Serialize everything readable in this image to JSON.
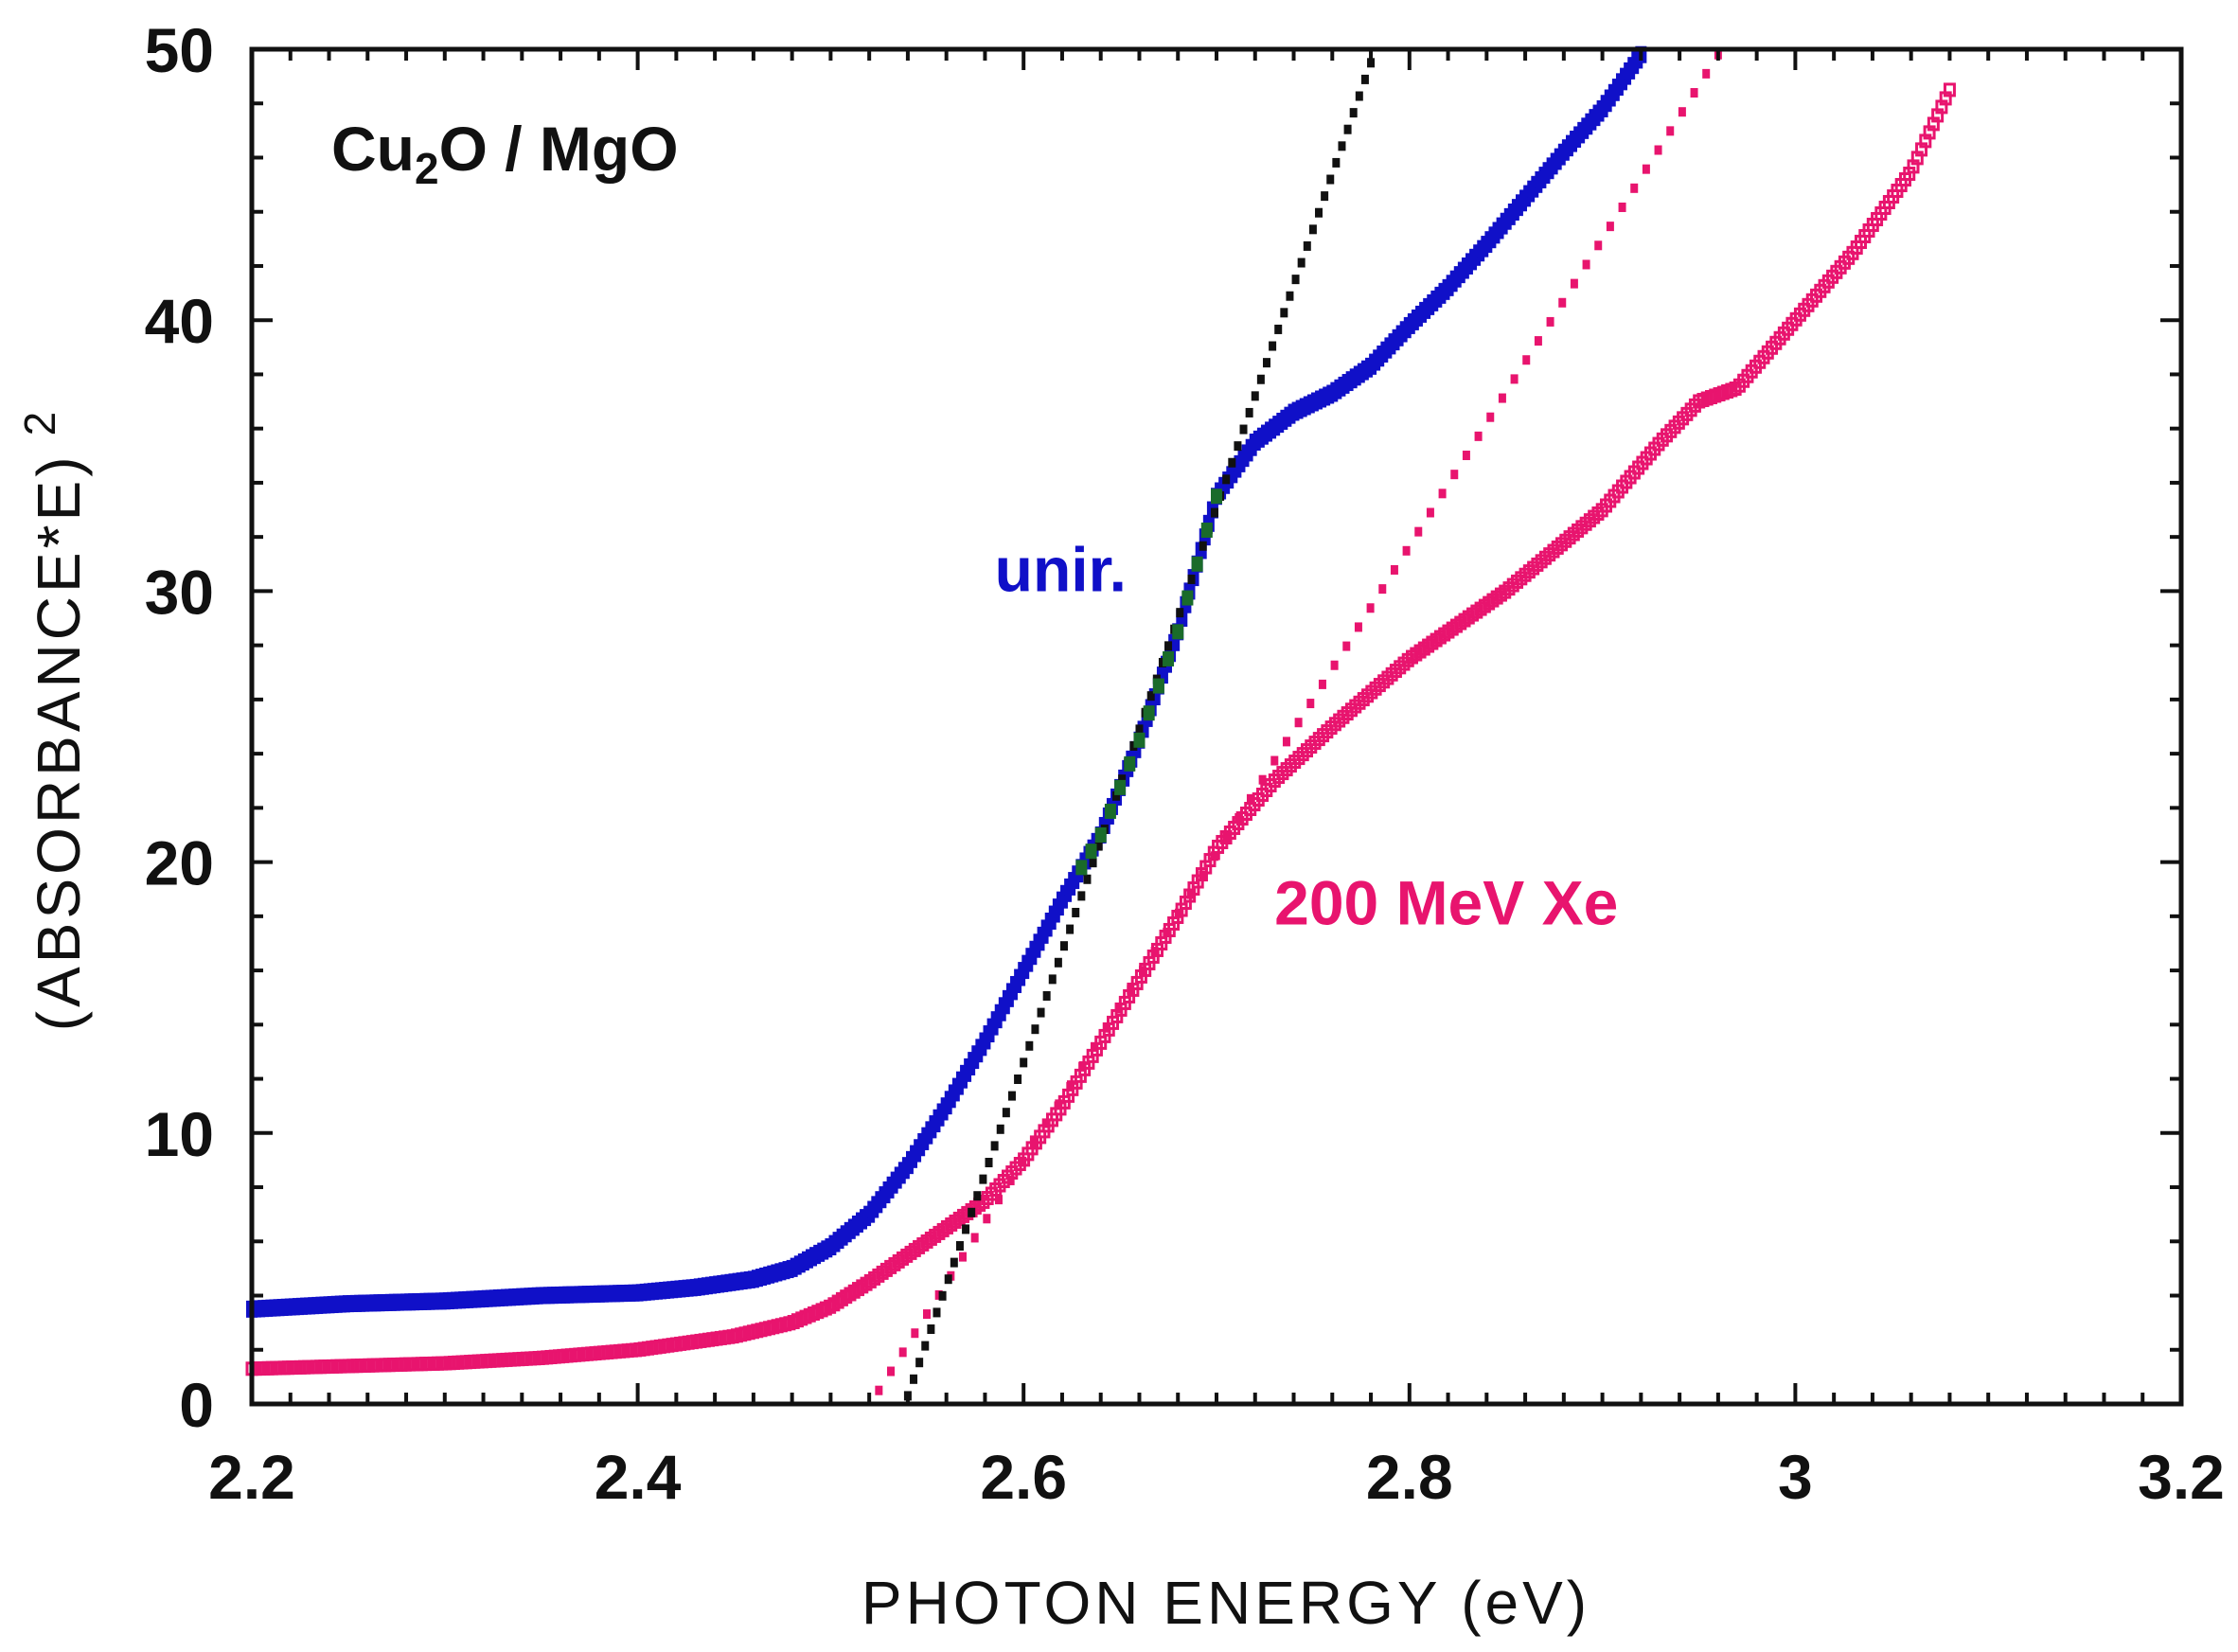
{
  "chart_data": {
    "type": "scatter",
    "title": "Cu",
    "title_sub": "2",
    "title_rest": "O / MgO",
    "xlabel": "PHOTON  ENERGY  (eV)",
    "ylabel": "(ABSORBANCE*E)",
    "ylabel_sup": "2",
    "xlim": [
      2.2,
      3.2
    ],
    "ylim": [
      0,
      50
    ],
    "xticks": [
      2.2,
      2.4,
      2.6,
      2.8,
      3,
      3.2
    ],
    "xtick_labels": [
      "2.2",
      "2.4",
      "2.6",
      "2.8",
      "3",
      "3.2"
    ],
    "yticks": [
      0,
      10,
      20,
      30,
      40,
      50
    ],
    "ytick_labels": [
      "0",
      "10",
      "20",
      "30",
      "40",
      "50"
    ],
    "grid": false,
    "annotations": [
      {
        "text": "unir.",
        "x": 2.585,
        "y": 30,
        "color": "#1010c8"
      },
      {
        "text": "200 MeV Xe",
        "x": 2.73,
        "y": 17.7,
        "color": "#e8146e"
      }
    ],
    "series": [
      {
        "name": "unir.",
        "color": "#1010c8",
        "x": [
          2.2,
          2.25,
          2.3,
          2.35,
          2.4,
          2.43,
          2.46,
          2.48,
          2.5,
          2.52,
          2.54,
          2.56,
          2.58,
          2.6,
          2.62,
          2.64,
          2.66,
          2.68,
          2.7,
          2.72,
          2.74,
          2.76,
          2.78,
          2.8,
          2.82,
          2.84,
          2.86,
          2.88,
          2.9,
          2.92
        ],
        "y": [
          3.5,
          3.7,
          3.8,
          4.0,
          4.1,
          4.3,
          4.6,
          5.0,
          5.8,
          7.0,
          8.8,
          11.0,
          13.4,
          16.0,
          18.6,
          21.0,
          24.5,
          28.5,
          33.5,
          35.5,
          36.6,
          37.3,
          38.3,
          39.8,
          41.2,
          42.8,
          44.5,
          46.2,
          47.8,
          49.8
        ]
      },
      {
        "name": "200 MeV Xe",
        "color": "#e8146e",
        "x": [
          2.2,
          2.25,
          2.3,
          2.35,
          2.4,
          2.45,
          2.48,
          2.5,
          2.52,
          2.55,
          2.58,
          2.6,
          2.62,
          2.65,
          2.68,
          2.7,
          2.73,
          2.76,
          2.8,
          2.85,
          2.9,
          2.93,
          2.95,
          2.97,
          3.0,
          3.03,
          3.06,
          3.08
        ],
        "y": [
          1.3,
          1.4,
          1.5,
          1.7,
          2.0,
          2.5,
          3.0,
          3.6,
          4.5,
          6.0,
          7.5,
          9.0,
          11.0,
          14.5,
          18.0,
          20.5,
          23.0,
          25.0,
          27.5,
          30.0,
          33.0,
          35.5,
          37.0,
          37.5,
          40.0,
          42.5,
          45.5,
          48.5
        ]
      },
      {
        "name": "200 MeV Xe linear fit",
        "color": "#e8146e",
        "style": "dotted",
        "x": [
          2.525,
          2.96
        ],
        "y": [
          0.5,
          49.8
        ]
      },
      {
        "name": "unir. linear fit",
        "color": "#111111",
        "style": "dotted",
        "x": [
          2.54,
          2.78
        ],
        "y": [
          0.3,
          49.5
        ]
      }
    ]
  }
}
